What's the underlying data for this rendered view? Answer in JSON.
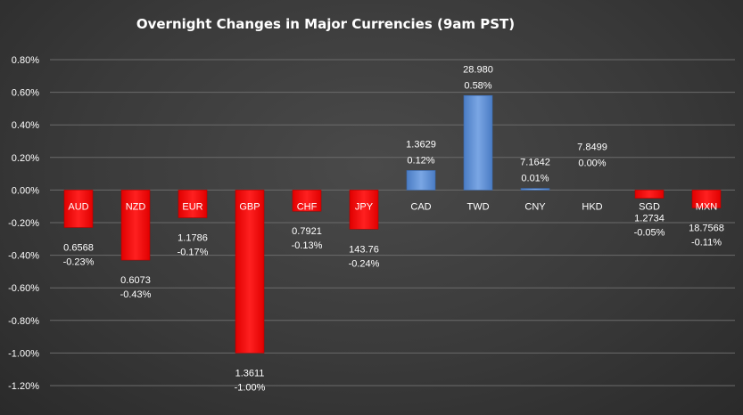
{
  "chart_data": {
    "type": "bar",
    "title": "Overnight Changes in Major Currencies (9am PST)",
    "xlabel": "",
    "ylabel": "",
    "ylim": [
      -0.012,
      0.008
    ],
    "yticks": [
      0.008,
      0.006,
      0.004,
      0.002,
      0.0,
      -0.002,
      -0.004,
      -0.006,
      -0.008,
      -0.01,
      -0.012
    ],
    "ytick_labels": [
      "0.80%",
      "0.60%",
      "0.40%",
      "0.20%",
      "0.00%",
      "-0.20%",
      "-0.40%",
      "-0.60%",
      "-0.80%",
      "-1.00%",
      "-1.20%"
    ],
    "grid": true,
    "legend": false,
    "categories": [
      "AUD",
      "NZD",
      "EUR",
      "GBP",
      "CHF",
      "JPY",
      "CAD",
      "TWD",
      "CNY",
      "HKD",
      "SGD",
      "MXN"
    ],
    "values": [
      -0.0023,
      -0.0043,
      -0.0017,
      -0.01,
      -0.0013,
      -0.0024,
      0.0012,
      0.0058,
      0.0001,
      0.0,
      -0.0005,
      -0.0011
    ],
    "rates": [
      "0.6568",
      "0.6073",
      "1.1786",
      "1.3611",
      "0.7921",
      "143.76",
      "1.3629",
      "28.980",
      "7.1642",
      "7.8499",
      "1.2734",
      "18.7568"
    ],
    "pct_labels": [
      "-0.23%",
      "-0.43%",
      "-0.17%",
      "-1.00%",
      "-0.13%",
      "-0.24%",
      "0.12%",
      "0.58%",
      "0.01%",
      "0.00%",
      "-0.05%",
      "-0.11%"
    ],
    "colors": {
      "positive": "#5b8fd6",
      "negative": "#ff0000",
      "grid": "#6b6b6b",
      "text": "#ffffff"
    }
  }
}
